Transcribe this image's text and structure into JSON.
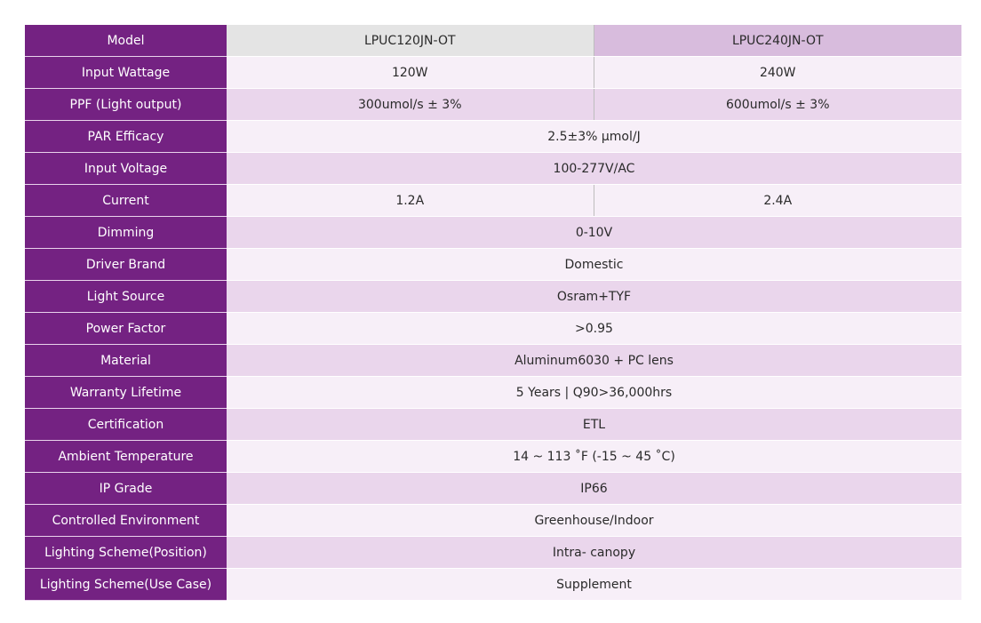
{
  "models": [
    "LPUC120JN-OT",
    "LPUC240JN-OT"
  ],
  "rows": [
    {
      "label": "Model"
    },
    {
      "label": "Input Wattage",
      "values": [
        "120W",
        "240W"
      ]
    },
    {
      "label": "PPF (Light output)",
      "values": [
        "300umol/s ± 3%",
        "600umol/s ± 3%"
      ]
    },
    {
      "label": "PAR Efficacy",
      "value": "2.5±3% μmol/J"
    },
    {
      "label": "Input Voltage",
      "value": "100-277V/AC"
    },
    {
      "label": "Current",
      "values": [
        "1.2A",
        "2.4A"
      ]
    },
    {
      "label": "Dimming",
      "value": "0-10V"
    },
    {
      "label": "Driver Brand",
      "value": "Domestic"
    },
    {
      "label": "Light Source",
      "value": "Osram+TYF"
    },
    {
      "label": "Power Factor",
      "value": ">0.95"
    },
    {
      "label": "Material",
      "value": "Aluminum6030 + PC lens"
    },
    {
      "label": "Warranty Lifetime",
      "value": "5 Years | Q90>36,000hrs"
    },
    {
      "label": "Certification",
      "value": "ETL"
    },
    {
      "label": "Ambient Temperature",
      "value": "14 ~ 113 ˚F (-15 ~ 45 ˚C)"
    },
    {
      "label": "IP Grade",
      "value": "IP66"
    },
    {
      "label": "Controlled Environment",
      "value": "Greenhouse/Indoor"
    },
    {
      "label": "Lighting Scheme(Position)",
      "value": "Intra- canopy"
    },
    {
      "label": "Lighting Scheme(Use Case)",
      "value": "Supplement"
    }
  ],
  "colors": {
    "label_bg": "#742282",
    "row_light": "#f7eff8",
    "row_dark": "#ead6ec",
    "model_a_bg": "#e4e4e4",
    "model_b_bg": "#d8bcdd"
  }
}
